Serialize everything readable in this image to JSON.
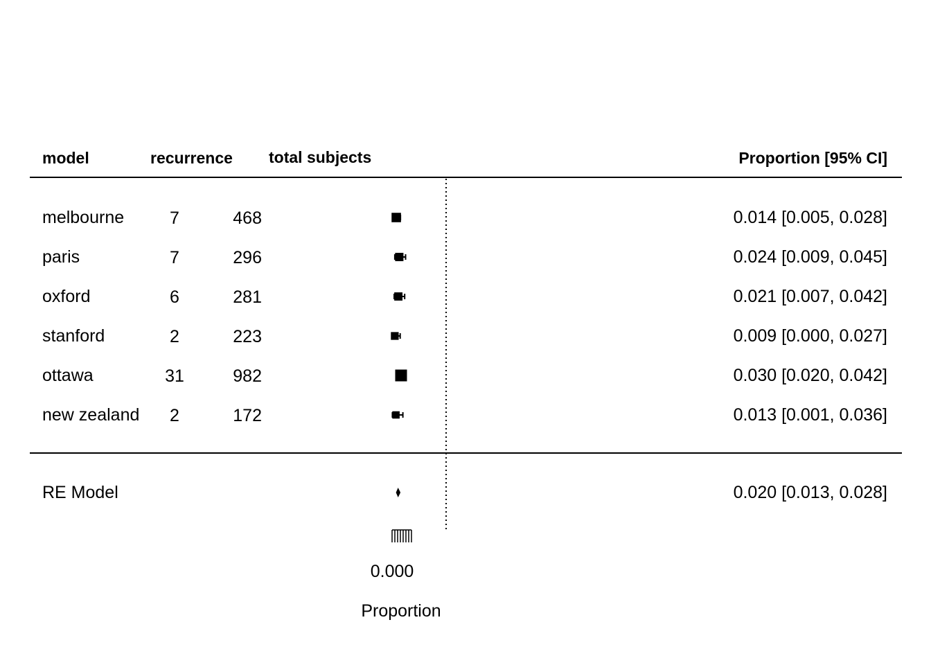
{
  "chart_data": {
    "type": "forest",
    "headers": {
      "model": "model",
      "recurrence": "recurrence",
      "total": "total subjects",
      "estimate": "Proportion [95% CI]"
    },
    "studies": [
      {
        "model": "melbourne",
        "recurrence": "7",
        "total": "468",
        "estimate": 0.014,
        "ci_low": 0.005,
        "ci_high": 0.028,
        "label": "0.014 [0.005, 0.028]"
      },
      {
        "model": "paris",
        "recurrence": "7",
        "total": "296",
        "estimate": 0.024,
        "ci_low": 0.009,
        "ci_high": 0.045,
        "label": "0.024 [0.009, 0.045]"
      },
      {
        "model": "oxford",
        "recurrence": "6",
        "total": "281",
        "estimate": 0.021,
        "ci_low": 0.007,
        "ci_high": 0.042,
        "label": "0.021 [0.007, 0.042]"
      },
      {
        "model": "stanford",
        "recurrence": "2",
        "total": "223",
        "estimate": 0.009,
        "ci_low": 0.0,
        "ci_high": 0.027,
        "label": "0.009 [0.000, 0.027]"
      },
      {
        "model": "ottawa",
        "recurrence": "31",
        "total": "982",
        "estimate": 0.03,
        "ci_low": 0.02,
        "ci_high": 0.042,
        "label": "0.030 [0.020, 0.042]"
      },
      {
        "model": "new zealand",
        "recurrence": "2",
        "total": "172",
        "estimate": 0.013,
        "ci_low": 0.001,
        "ci_high": 0.036,
        "label": "0.013 [0.001, 0.036]"
      }
    ],
    "summary": {
      "model": "RE Model",
      "estimate": 0.02,
      "ci_low": 0.013,
      "ci_high": 0.028,
      "label": "0.020 [0.013, 0.028]"
    },
    "reference_line": 0.18,
    "x_axis": {
      "label": "Proportion",
      "tick_labels": [
        "0.000"
      ],
      "xlim": [
        0,
        0.18
      ]
    }
  }
}
